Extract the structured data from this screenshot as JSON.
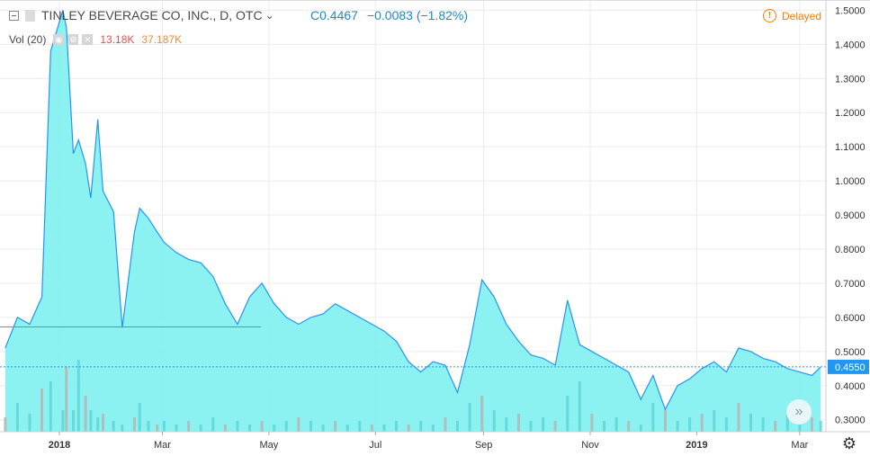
{
  "header": {
    "symbol_label": "TINLEY BEVERAGE CO, INC., D, OTC",
    "close_label": "C",
    "close_value": "0.4467",
    "change": "−0.0083 (−1.82%)",
    "delayed_label": "Delayed"
  },
  "volume_legend": {
    "label": "Vol (20)",
    "value": "13.18K",
    "ma_value": "37.187K"
  },
  "colors": {
    "line": "#2196f3",
    "area_fill": "#80f0f0",
    "price_marker": "#2196f3",
    "ref_line": "#4caf50",
    "volume_bar": "#b5b5b5",
    "volume_bar_up": "#5fd6d6"
  },
  "icons": [
    "collapse-icon",
    "eye-icon",
    "settings-icon",
    "close-icon",
    "warning-icon",
    "chevrons-right-icon",
    "gear-icon"
  ],
  "chart_data": {
    "type": "area",
    "x_ticks": [
      "2018",
      "Mar",
      "May",
      "Jul",
      "Sep",
      "Nov",
      "2019",
      "Mar"
    ],
    "y_ticks": [
      "1.5000",
      "1.4000",
      "1.3000",
      "1.2000",
      "1.1000",
      "1.0000",
      "0.9000",
      "0.8000",
      "0.7000",
      "0.6000",
      "0.5000",
      "0.4000",
      "0.3000"
    ],
    "ylim": [
      0.265,
      1.53
    ],
    "last_price_label": "0.4550",
    "last_price": 0.455,
    "reference_line": 0.572,
    "x": [
      "2017-12-01",
      "2017-12-08",
      "2017-12-15",
      "2017-12-22",
      "2017-12-27",
      "2018-01-03",
      "2018-01-05",
      "2018-01-09",
      "2018-01-12",
      "2018-01-16",
      "2018-01-19",
      "2018-01-23",
      "2018-01-26",
      "2018-02-01",
      "2018-02-06",
      "2018-02-13",
      "2018-02-16",
      "2018-02-21",
      "2018-02-26",
      "2018-03-02",
      "2018-03-09",
      "2018-03-16",
      "2018-03-23",
      "2018-03-30",
      "2018-04-06",
      "2018-04-13",
      "2018-04-20",
      "2018-04-27",
      "2018-05-04",
      "2018-05-11",
      "2018-05-18",
      "2018-05-25",
      "2018-06-01",
      "2018-06-08",
      "2018-06-15",
      "2018-06-22",
      "2018-06-29",
      "2018-07-06",
      "2018-07-13",
      "2018-07-20",
      "2018-07-27",
      "2018-08-03",
      "2018-08-10",
      "2018-08-17",
      "2018-08-24",
      "2018-08-31",
      "2018-09-07",
      "2018-09-14",
      "2018-09-21",
      "2018-09-28",
      "2018-10-05",
      "2018-10-12",
      "2018-10-19",
      "2018-10-26",
      "2018-11-02",
      "2018-11-09",
      "2018-11-16",
      "2018-11-23",
      "2018-11-30",
      "2018-12-07",
      "2018-12-14",
      "2018-12-21",
      "2018-12-28",
      "2019-01-04",
      "2019-01-11",
      "2019-01-18",
      "2019-01-25",
      "2019-02-01",
      "2019-02-08",
      "2019-02-15",
      "2019-02-22",
      "2019-03-01",
      "2019-03-08",
      "2019-03-13"
    ],
    "price": [
      0.51,
      0.6,
      0.58,
      0.66,
      1.38,
      1.5,
      1.45,
      1.08,
      1.12,
      1.05,
      0.95,
      1.18,
      0.97,
      0.91,
      0.57,
      0.85,
      0.92,
      0.89,
      0.85,
      0.82,
      0.79,
      0.77,
      0.76,
      0.72,
      0.64,
      0.58,
      0.66,
      0.7,
      0.64,
      0.6,
      0.58,
      0.6,
      0.61,
      0.64,
      0.62,
      0.6,
      0.58,
      0.56,
      0.53,
      0.47,
      0.44,
      0.47,
      0.46,
      0.38,
      0.52,
      0.71,
      0.66,
      0.58,
      0.53,
      0.49,
      0.48,
      0.46,
      0.65,
      0.52,
      0.5,
      0.48,
      0.46,
      0.44,
      0.36,
      0.43,
      0.33,
      0.4,
      0.42,
      0.45,
      0.47,
      0.44,
      0.51,
      0.5,
      0.48,
      0.47,
      0.45,
      0.44,
      0.43,
      0.455
    ],
    "volume_axis_note": "",
    "volume": [
      4,
      8,
      5,
      12,
      14,
      6,
      18,
      6,
      20,
      10,
      6,
      4,
      5,
      3,
      2,
      4,
      8,
      3,
      2,
      3,
      2,
      3,
      2,
      4,
      2,
      3,
      2,
      3,
      2,
      3,
      4,
      3,
      2,
      3,
      2,
      3,
      2,
      2,
      3,
      2,
      3,
      2,
      4,
      3,
      8,
      10,
      6,
      4,
      5,
      3,
      4,
      3,
      10,
      14,
      5,
      3,
      4,
      3,
      2,
      8,
      6,
      3,
      4,
      5,
      6,
      4,
      8,
      5,
      4,
      3,
      6,
      5,
      4,
      3
    ]
  }
}
